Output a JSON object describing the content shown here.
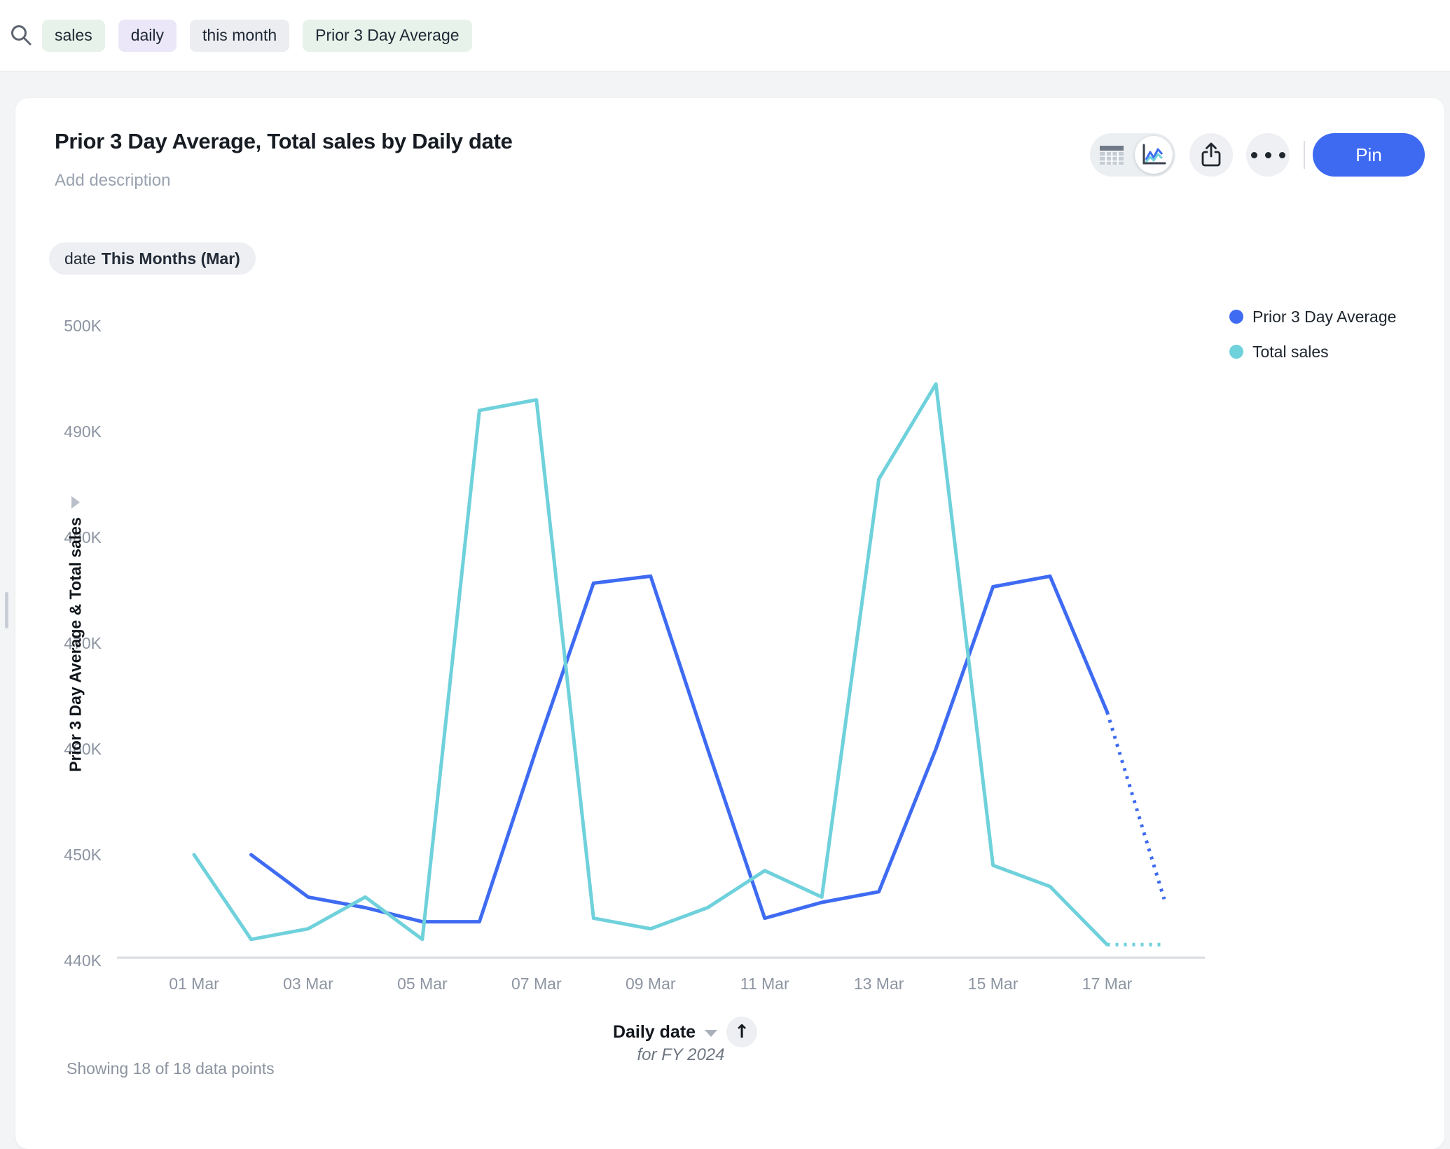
{
  "topbar": {
    "tokens": [
      {
        "label": "sales",
        "bg": "#e7f3ea"
      },
      {
        "label": "daily",
        "bg": "#ebe7f8"
      },
      {
        "label": "this month",
        "bg": "#ebedf1"
      },
      {
        "label": "Prior 3 Day Average",
        "bg": "#e7f3ea"
      }
    ]
  },
  "card": {
    "title": "Prior 3 Day Average, Total sales by Daily date",
    "description": "Add description",
    "toolbar": {
      "pin_label": "Pin",
      "pin_bg": "#3e6af2"
    },
    "filter_chip": {
      "prefix": "date",
      "value": "This Months (Mar)"
    },
    "xaxis_control": {
      "label": "Daily date",
      "period_note": "for FY 2024"
    },
    "footer_status": "Showing 18 of 18 data points"
  },
  "chart_data": {
    "type": "line",
    "title": "Prior 3 Day Average, Total sales by Daily date",
    "x": [
      "01 Mar",
      "02 Mar",
      "03 Mar",
      "04 Mar",
      "05 Mar",
      "06 Mar",
      "07 Mar",
      "08 Mar",
      "09 Mar",
      "10 Mar",
      "11 Mar",
      "12 Mar",
      "13 Mar",
      "14 Mar",
      "15 Mar",
      "16 Mar",
      "17 Mar",
      "18 Mar"
    ],
    "x_tick_every": 2,
    "xlabel": "Daily date",
    "ylabel": "Prior 3 Day Average & Total sales",
    "ylim": [
      440000,
      500000
    ],
    "grid": false,
    "legend_position": "top-right",
    "y_ticks": [
      {
        "value": 440000,
        "label": "440K"
      },
      {
        "value": 450000,
        "label": "450K"
      },
      {
        "value": 460000,
        "label": "460K"
      },
      {
        "value": 470000,
        "label": "470K"
      },
      {
        "value": 480000,
        "label": "480K"
      },
      {
        "value": 490000,
        "label": "490K"
      },
      {
        "value": 500000,
        "label": "500K"
      }
    ],
    "series": [
      {
        "name": "Prior 3 Day Average",
        "color": "#3e6bf2",
        "dotted_last_segment": true,
        "values": [
          null,
          450000,
          446000,
          445000,
          443670,
          443670,
          460000,
          475670,
          476330,
          460000,
          444000,
          445500,
          446500,
          460000,
          475330,
          476330,
          463500,
          445800
        ]
      },
      {
        "name": "Total sales",
        "color": "#6fd1db",
        "dotted_last_segment": true,
        "values": [
          450000,
          442000,
          443000,
          446000,
          442000,
          492000,
          493000,
          444000,
          443000,
          445000,
          448500,
          446000,
          485500,
          494500,
          449000,
          447000,
          441500,
          441500
        ]
      }
    ]
  }
}
